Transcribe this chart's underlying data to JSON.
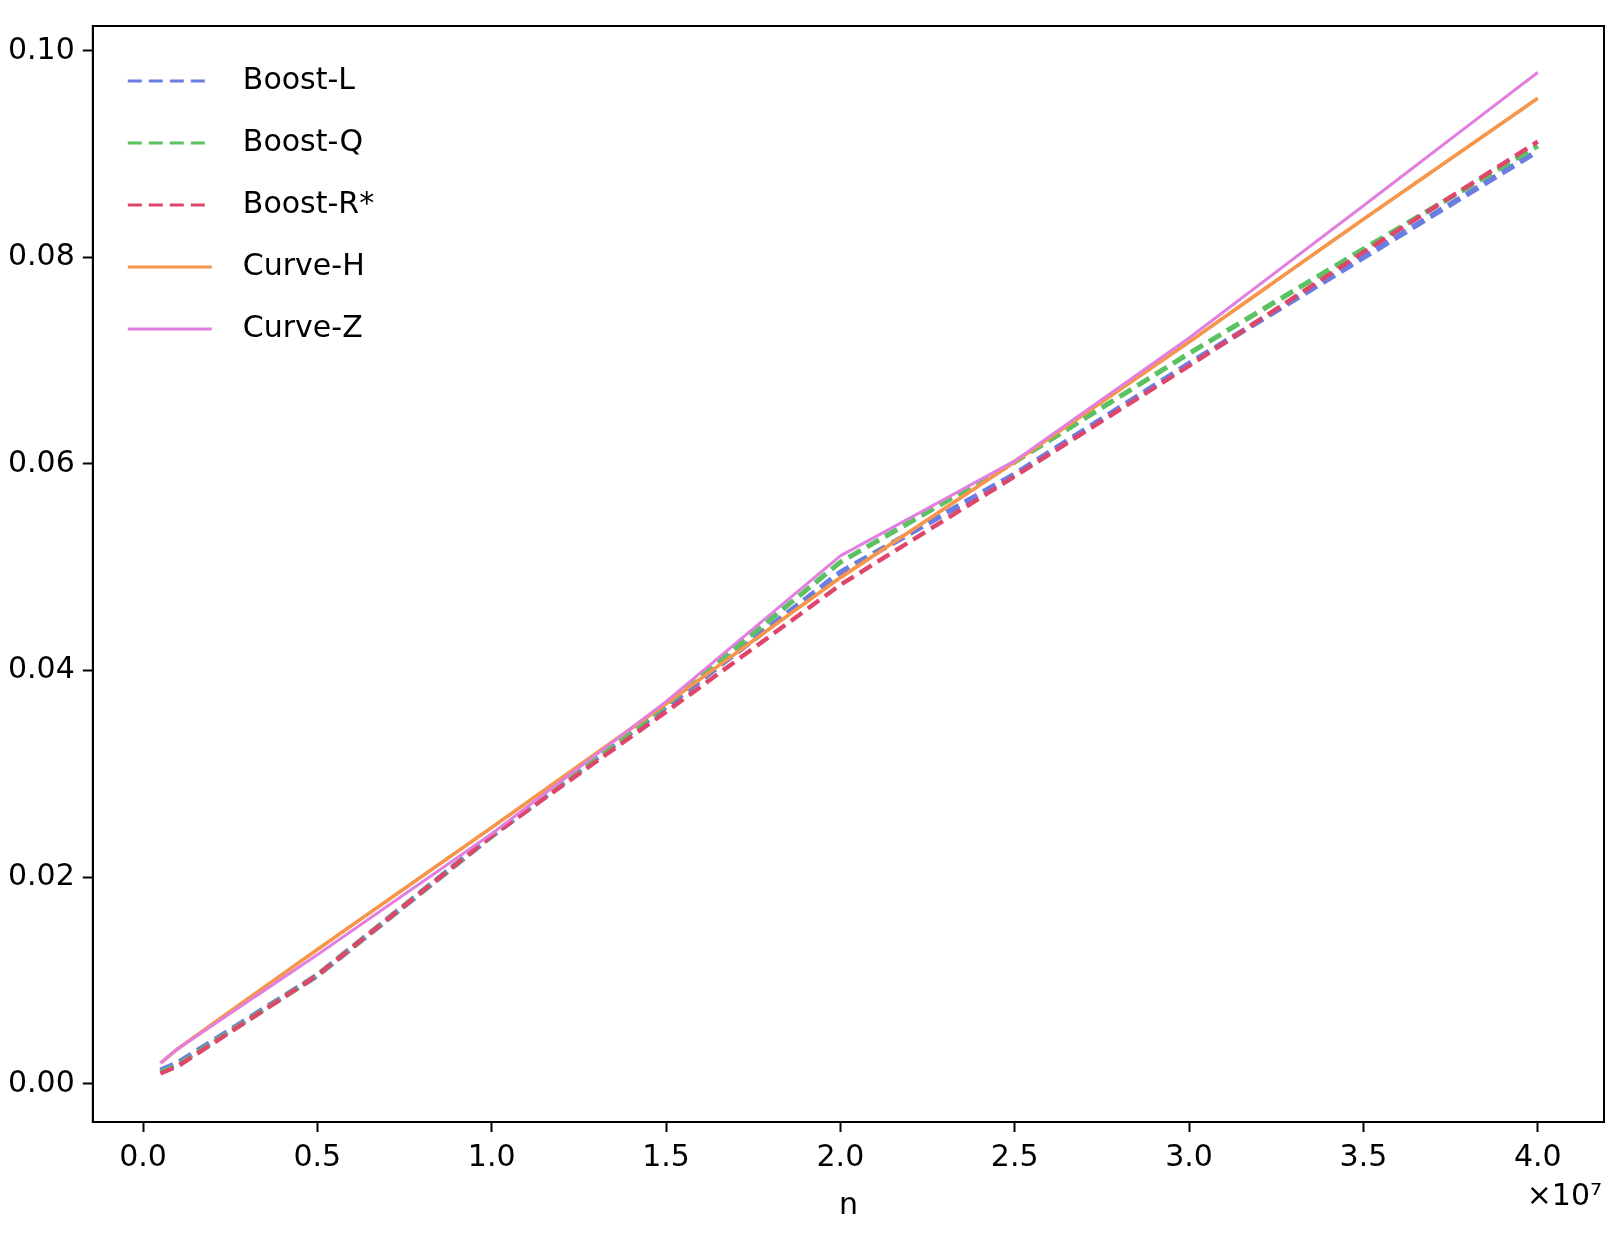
{
  "chart_data": {
    "type": "line",
    "xlabel": "n",
    "x": [
      0.05,
      0.1,
      0.5,
      1.0,
      1.5,
      2.0,
      2.5,
      3.0,
      3.5,
      4.0
    ],
    "series": [
      {
        "name": "Boost-L",
        "color": "#6a7de0",
        "line_style": "dashed",
        "values": [
          0.0013,
          0.002,
          0.0105,
          0.024,
          0.0365,
          0.0495,
          0.059,
          0.0697,
          0.08,
          0.0903
        ]
      },
      {
        "name": "Boost-Q",
        "color": "#5cc160",
        "line_style": "dashed",
        "values": [
          0.0011,
          0.0018,
          0.0105,
          0.024,
          0.0367,
          0.0505,
          0.0602,
          0.0707,
          0.0808,
          0.0908
        ]
      },
      {
        "name": "Boost-R*",
        "color": "#e0456a",
        "line_style": "dashed",
        "values": [
          0.001,
          0.0017,
          0.0105,
          0.024,
          0.036,
          0.0483,
          0.0588,
          0.0695,
          0.0805,
          0.0912
        ]
      },
      {
        "name": "Curve-H",
        "color": "#f5964a",
        "line_style": "solid",
        "values": [
          0.002,
          0.0034,
          0.013,
          0.0248,
          0.0368,
          0.049,
          0.0602,
          0.0718,
          0.0837,
          0.0954
        ]
      },
      {
        "name": "Curve-Z",
        "color": "#e27ee0",
        "line_style": "solid",
        "values": [
          0.002,
          0.0034,
          0.0125,
          0.0242,
          0.037,
          0.0511,
          0.0603,
          0.0722,
          0.085,
          0.0979
        ]
      }
    ],
    "xlim": [
      -0.144,
      4.19
    ],
    "ylim": [
      -0.0037,
      0.1024
    ],
    "xticks": [
      {
        "value": 0,
        "label": "0.0"
      },
      0.5,
      {
        "value": 1,
        "label": "1.0"
      },
      1.5,
      {
        "value": 2,
        "label": "2.0"
      },
      2.5,
      {
        "value": 3,
        "label": "3.0"
      },
      3.5,
      {
        "value": 4,
        "label": "4.0"
      }
    ],
    "yticks": [
      {
        "value": 0,
        "label": "0.00"
      },
      {
        "value": 0.02,
        "label": "0.02"
      },
      {
        "value": 0.04,
        "label": "0.04"
      },
      {
        "value": 0.06,
        "label": "0.06"
      },
      {
        "value": 0.08,
        "label": "0.08"
      },
      {
        "value": 0.1,
        "label": "0.10"
      }
    ],
    "annotations": [
      "×10⁷"
    ],
    "legend": "top left",
    "grid": false,
    "marker": "none"
  }
}
